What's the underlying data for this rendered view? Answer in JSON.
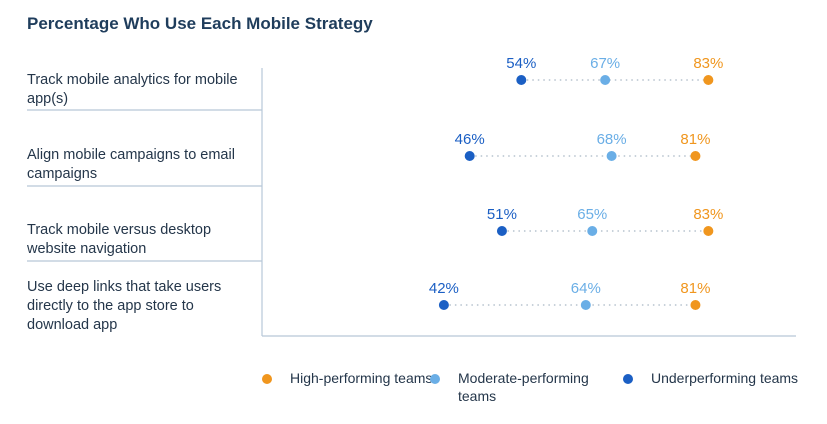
{
  "chart_data": {
    "type": "scatter",
    "title": "Percentage Who Use Each Mobile Strategy",
    "categories": [
      "Track mobile analytics for mobile app(s)",
      "Align mobile campaigns to email campaigns",
      "Track mobile versus desktop website navigation",
      "Use deep links that take users directly to the app store to download app"
    ],
    "series": [
      {
        "name": "High-performing teams",
        "color": "#f0961e",
        "values": [
          83,
          81,
          83,
          81
        ],
        "labels": [
          "83%",
          "81%",
          "83%",
          "81%"
        ]
      },
      {
        "name": "Moderate-performing teams",
        "color": "#6aaee6",
        "values": [
          67,
          68,
          65,
          64
        ],
        "labels": [
          "67%",
          "68%",
          "65%",
          "64%"
        ]
      },
      {
        "name": "Underperforming teams",
        "color": "#1b5fc4",
        "values": [
          54,
          46,
          51,
          42
        ],
        "labels": [
          "54%",
          "46%",
          "51%",
          "42%"
        ]
      }
    ],
    "legend_position": "bottom",
    "grid": false
  }
}
